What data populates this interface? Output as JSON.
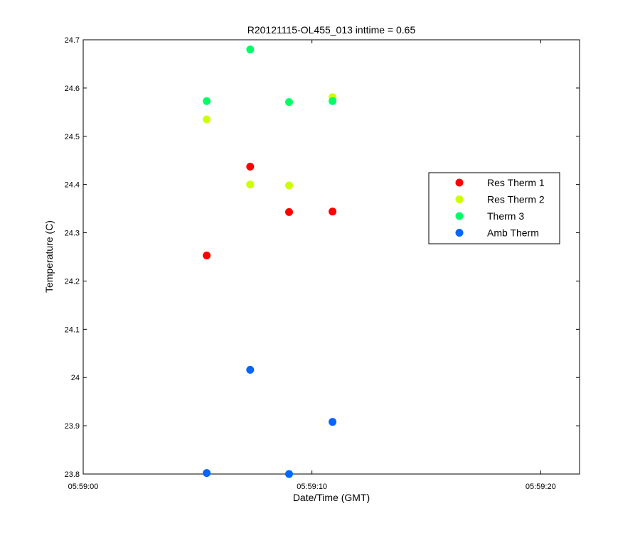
{
  "chart_data": {
    "type": "scatter",
    "title": "R20121115-OL455_013 inttime = 0.65",
    "xlabel": "Date/Time (GMT)",
    "ylabel": "Temperature (C)",
    "x_axis": {
      "unit": "time",
      "xlim": [
        "05:59:00",
        "05:59:21.7"
      ],
      "tick_values": [
        "05:59:00",
        "05:59:10",
        "05:59:20"
      ],
      "tick_labels": [
        "05:59:00",
        "05:59:10",
        "05:59:20"
      ]
    },
    "y_axis": {
      "ylim": [
        23.8,
        24.7
      ],
      "ticks": [
        23.8,
        23.9,
        24,
        24.1,
        24.2,
        24.3,
        24.4,
        24.5,
        24.6,
        24.7
      ],
      "tick_labels": [
        "23.8",
        "23.9",
        "24",
        "24.1",
        "24.2",
        "24.3",
        "24.4",
        "24.5",
        "24.6",
        "24.7"
      ]
    },
    "grid": false,
    "legend_position": "right",
    "series": [
      {
        "name": "Res Therm 1",
        "color": "#ff0000",
        "points": [
          {
            "x": "05:59:05.4",
            "y": 24.253
          },
          {
            "x": "05:59:07.3",
            "y": 24.437
          },
          {
            "x": "05:59:09.0",
            "y": 24.343
          },
          {
            "x": "05:59:10.9",
            "y": 24.344
          }
        ]
      },
      {
        "name": "Res Therm 2",
        "color": "#ccff00",
        "points": [
          {
            "x": "05:59:05.4",
            "y": 24.535
          },
          {
            "x": "05:59:07.3",
            "y": 24.4
          },
          {
            "x": "05:59:09.0",
            "y": 24.398
          },
          {
            "x": "05:59:10.9",
            "y": 24.581
          }
        ]
      },
      {
        "name": "Therm 3",
        "color": "#00ff66",
        "points": [
          {
            "x": "05:59:05.4",
            "y": 24.573
          },
          {
            "x": "05:59:07.3",
            "y": 24.68
          },
          {
            "x": "05:59:09.0",
            "y": 24.571
          },
          {
            "x": "05:59:10.9",
            "y": 24.573
          }
        ]
      },
      {
        "name": "Amb Therm",
        "color": "#0066ff",
        "points": [
          {
            "x": "05:59:05.4",
            "y": 23.802
          },
          {
            "x": "05:59:07.3",
            "y": 24.016
          },
          {
            "x": "05:59:09.0",
            "y": 23.8
          },
          {
            "x": "05:59:10.9",
            "y": 23.908
          }
        ]
      }
    ]
  }
}
